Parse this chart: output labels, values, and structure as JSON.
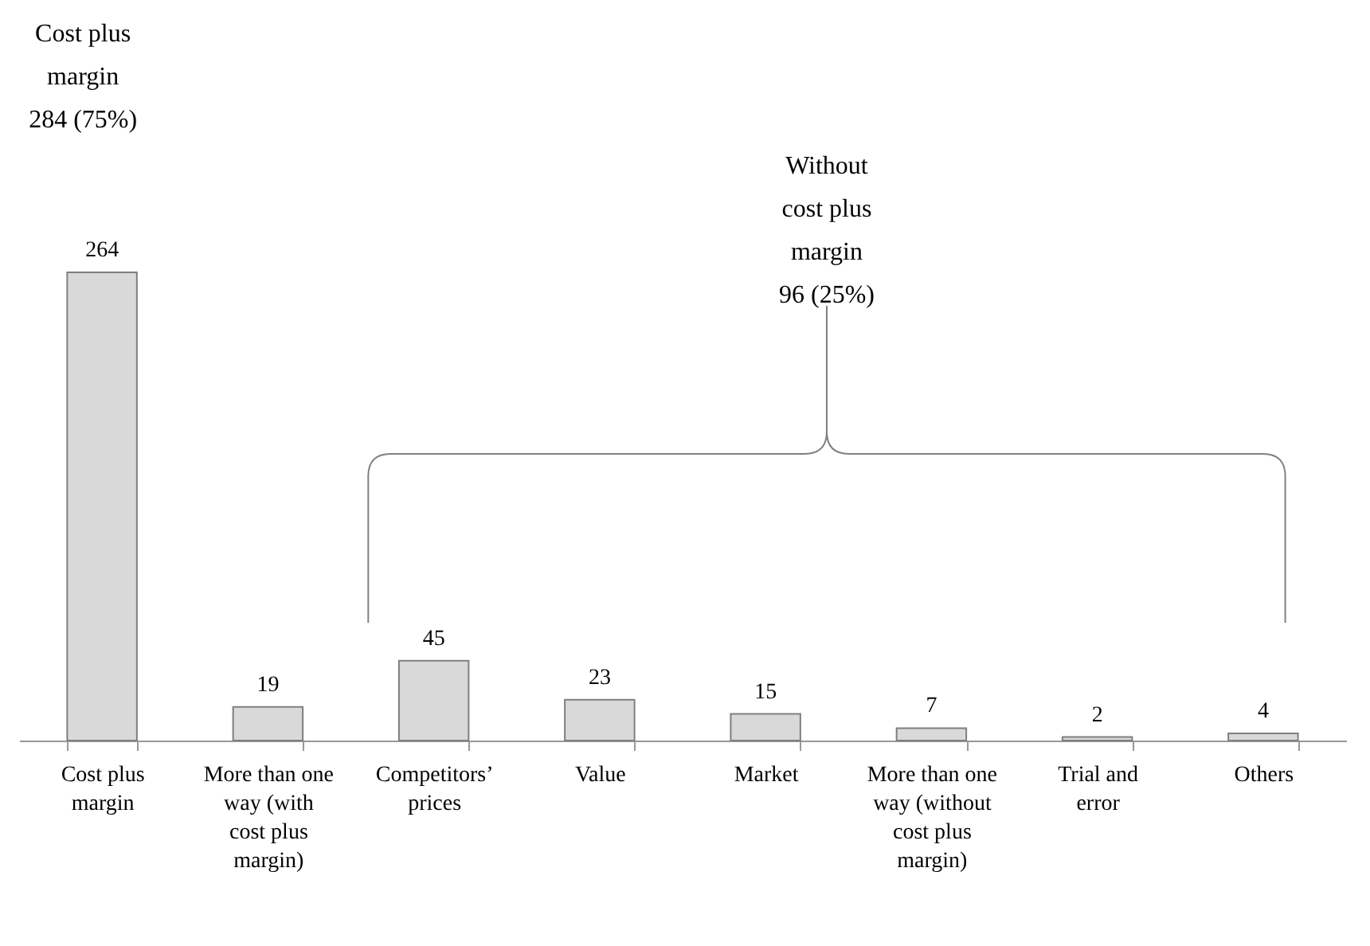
{
  "chart_data": {
    "type": "bar",
    "categories": [
      "Cost plus margin",
      "More than one way (with cost plus margin)",
      "Competitors’ prices",
      "Value",
      "Market",
      "More than one way (without cost plus margin)",
      "Trial and error",
      "Others"
    ],
    "values": [
      264,
      19,
      45,
      23,
      15,
      7,
      2,
      4
    ],
    "color": "#d9d9d9",
    "data_labels": true,
    "annotations": [
      "Cost plus margin 284 (75%)",
      "Without cost plus margin 96 (25%)"
    ]
  }
}
